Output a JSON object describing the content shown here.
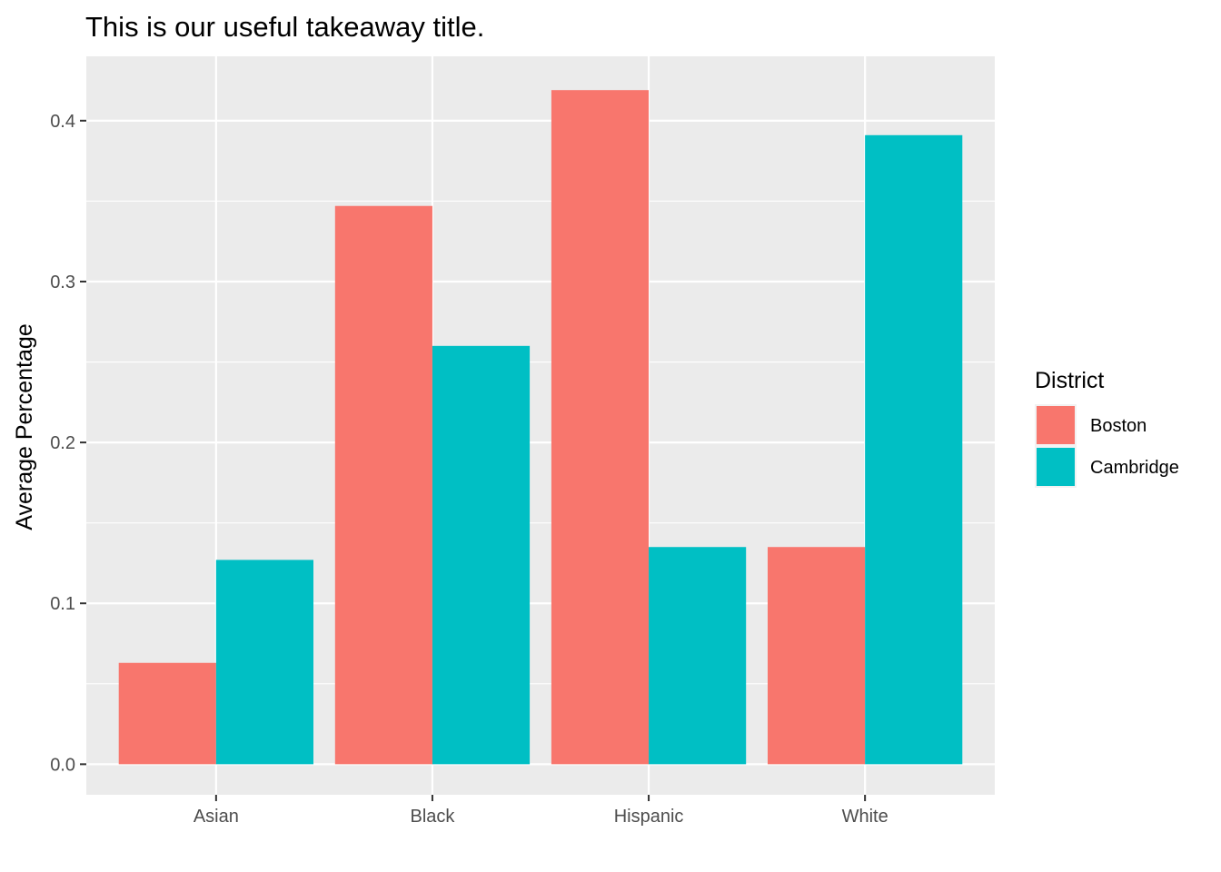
{
  "chart_data": {
    "type": "bar",
    "title": "This is our useful takeaway title.",
    "xlabel": "",
    "ylabel": "Average Percentage",
    "categories": [
      "Asian",
      "Black",
      "Hispanic",
      "White"
    ],
    "series": [
      {
        "name": "Boston",
        "color": "#F8766D",
        "values": [
          0.063,
          0.347,
          0.419,
          0.135
        ]
      },
      {
        "name": "Cambridge",
        "color": "#00BFC4",
        "values": [
          0.127,
          0.26,
          0.135,
          0.391
        ]
      }
    ],
    "ylim": [
      -0.019,
      0.44
    ],
    "yticks": [
      0.0,
      0.1,
      0.2,
      0.3,
      0.4
    ],
    "ytick_labels": [
      "0.0",
      "0.1",
      "0.2",
      "0.3",
      "0.4"
    ],
    "legend": {
      "title": "District",
      "position": "right"
    },
    "grid": true,
    "panel_background": "#EBEBEB",
    "grid_color": "#FFFFFF"
  }
}
